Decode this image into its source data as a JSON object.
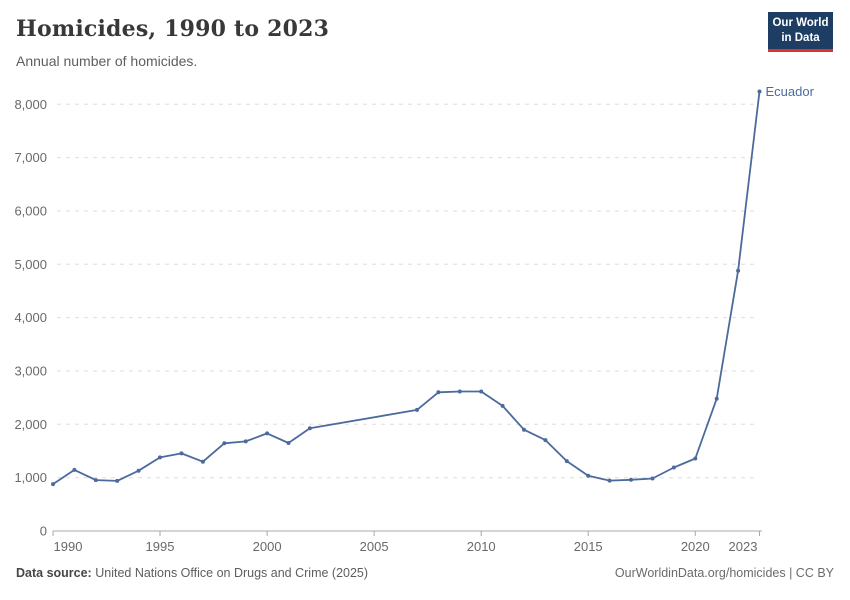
{
  "header": {
    "title": "Homicides, 1990 to 2023",
    "subtitle": "Annual number of homicides.",
    "logo": {
      "line1": "Our World",
      "line2": "in Data",
      "bg": "#1d3d63",
      "stripe": "#dc342c"
    }
  },
  "chart_data": {
    "type": "line",
    "title": "Homicides, 1990 to 2023",
    "xlabel": "",
    "ylabel": "",
    "xlim": [
      1990,
      2023
    ],
    "ylim": [
      0,
      8000
    ],
    "xticks": [
      1990,
      1995,
      2000,
      2005,
      2010,
      2015,
      2020,
      2023
    ],
    "yticks": [
      0,
      1000,
      2000,
      3000,
      4000,
      5000,
      6000,
      7000,
      8000
    ],
    "ytick_labels": [
      "0",
      "1,000",
      "2,000",
      "3,000",
      "4,000",
      "5,000",
      "6,000",
      "7,000",
      "8,000"
    ],
    "grid": "horizontal-dashed",
    "legend_position": "end-of-line-label",
    "end_label": "Ecuador",
    "series": [
      {
        "name": "Ecuador",
        "color": "#4c6a9c",
        "points": [
          [
            1990,
            880
          ],
          [
            1991,
            1145
          ],
          [
            1992,
            955
          ],
          [
            1993,
            940
          ],
          [
            1994,
            1130
          ],
          [
            1995,
            1380
          ],
          [
            1996,
            1455
          ],
          [
            1997,
            1300
          ],
          [
            1998,
            1645
          ],
          [
            1999,
            1680
          ],
          [
            2000,
            1830
          ],
          [
            2001,
            1650
          ],
          [
            2002,
            1925
          ],
          [
            2007,
            2270
          ],
          [
            2008,
            2600
          ],
          [
            2009,
            2615
          ],
          [
            2010,
            2615
          ],
          [
            2011,
            2345
          ],
          [
            2012,
            1900
          ],
          [
            2013,
            1705
          ],
          [
            2014,
            1310
          ],
          [
            2015,
            1035
          ],
          [
            2016,
            945
          ],
          [
            2017,
            960
          ],
          [
            2018,
            985
          ],
          [
            2019,
            1190
          ],
          [
            2020,
            1360
          ],
          [
            2021,
            2480
          ],
          [
            2022,
            4880
          ],
          [
            2023,
            8240
          ]
        ]
      }
    ]
  },
  "colors": {
    "line": "#4c6a9c",
    "grid": "#dedede",
    "axis": "#a8a8a8",
    "tick_text": "#6a6a6a"
  },
  "footer": {
    "source_label": "Data source:",
    "source_text": "United Nations Office on Drugs and Crime (2025)",
    "attribution": "OurWorldinData.org/homicides | CC BY"
  }
}
